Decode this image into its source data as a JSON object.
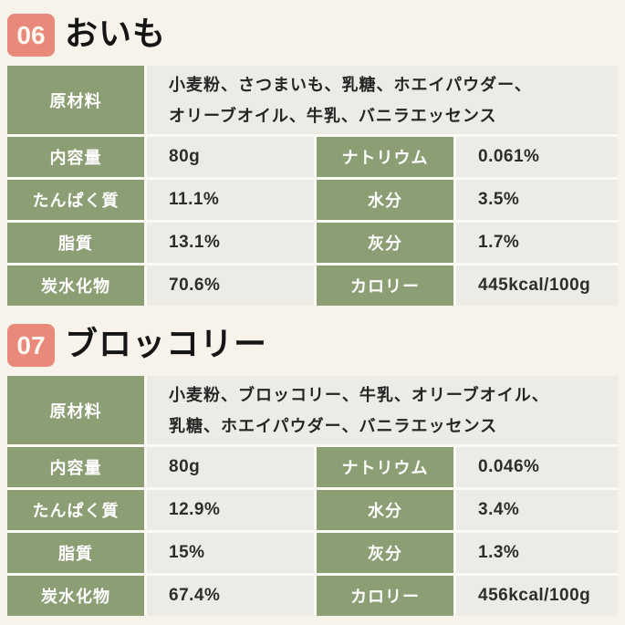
{
  "page": {
    "background_color": "#f8f3ea",
    "badge_color": "#e8897a",
    "header_cell_color": "#8c9e74",
    "value_cell_color": "#ecebe5"
  },
  "sections": [
    {
      "number": "06",
      "title": "おいも",
      "ingredients_label": "原材料",
      "ingredients_line1": "小麦粉、さつまいも、乳糖、ホエイパウダー、",
      "ingredients_line2": "オリーブオイル、牛乳、バニラエッセンス",
      "rows": [
        {
          "left_label": "内容量",
          "left_value": "80g",
          "right_label": "ナトリウム",
          "right_value": "0.061%"
        },
        {
          "left_label": "たんぱく質",
          "left_value": "11.1%",
          "right_label": "水分",
          "right_value": "3.5%"
        },
        {
          "left_label": "脂質",
          "left_value": "13.1%",
          "right_label": "灰分",
          "right_value": "1.7%"
        },
        {
          "left_label": "炭水化物",
          "left_value": "70.6%",
          "right_label": "カロリー",
          "right_value": "445kcal/100g"
        }
      ]
    },
    {
      "number": "07",
      "title": "ブロッコリー",
      "ingredients_label": "原材料",
      "ingredients_line1": "小麦粉、ブロッコリー、牛乳、オリーブオイル、",
      "ingredients_line2": "乳糖、ホエイパウダー、バニラエッセンス",
      "rows": [
        {
          "left_label": "内容量",
          "left_value": "80g",
          "right_label": "ナトリウム",
          "right_value": "0.046%"
        },
        {
          "left_label": "たんぱく質",
          "left_value": "12.9%",
          "right_label": "水分",
          "right_value": "3.4%"
        },
        {
          "left_label": "脂質",
          "left_value": "15%",
          "right_label": "灰分",
          "right_value": "1.3%"
        },
        {
          "left_label": "炭水化物",
          "left_value": "67.4%",
          "right_label": "カロリー",
          "right_value": "456kcal/100g"
        }
      ]
    }
  ]
}
